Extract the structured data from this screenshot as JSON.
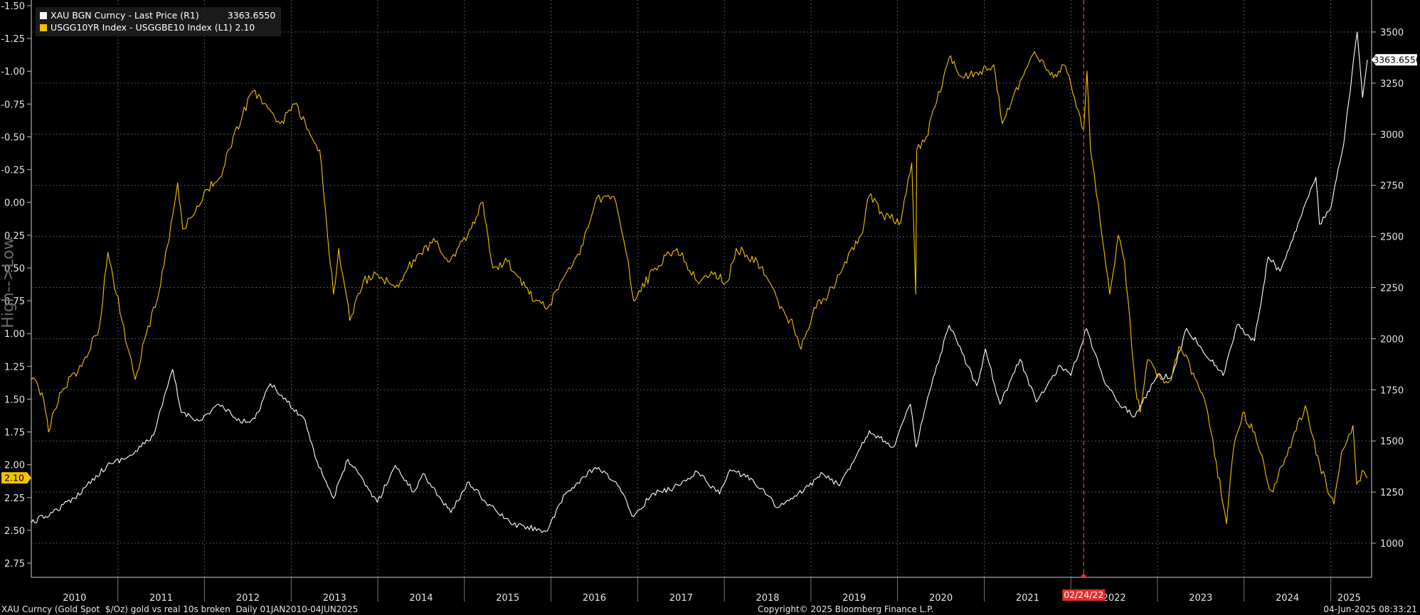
{
  "legend": {
    "items": [
      {
        "label": "XAU BGN Curncy - Last Price (R1)",
        "value": "3363.6550",
        "color": "#ffffff"
      },
      {
        "label": "USGG10YR Index - USGGBE10 Index (L1)",
        "value": "2.10",
        "color": "#f2c200"
      }
    ]
  },
  "axis_label_left": "High-->Low",
  "event_marker": {
    "label": "02/24/22",
    "date": "2022-02-24",
    "color": "#e03030"
  },
  "last_value_tags": {
    "right": "3363.6550",
    "left": "2.10"
  },
  "footer": {
    "left": "XAU Curncy (Gold Spot  $/Oz) gold vs real 10s broken  Daily 01JAN2010-04JUN2025",
    "center": "Copyright© 2025 Bloomberg Finance L.P.",
    "right": "04-Jun-2025 08:33:21"
  },
  "chart_data": {
    "type": "line",
    "x_range": [
      "2010-01-01",
      "2025-06-04"
    ],
    "x_tick_labels": [
      "2010",
      "2011",
      "2012",
      "2013",
      "2014",
      "2015",
      "2016",
      "2017",
      "2018",
      "2019",
      "2020",
      "2021",
      "2022",
      "2023",
      "2024",
      "2025"
    ],
    "left_axis": {
      "ticks": [
        "-1.50",
        "-1.25",
        "-1.00",
        "-0.75",
        "-0.50",
        "-0.25",
        "0.00",
        "0.25",
        "0.50",
        "0.75",
        "1.00",
        "1.25",
        "1.50",
        "1.75",
        "2.00",
        "2.25",
        "2.50",
        "2.75"
      ],
      "range": [
        -1.5,
        2.75
      ],
      "inverted": true
    },
    "right_axis": {
      "ticks": [
        "1000",
        "1250",
        "1500",
        "1750",
        "2000",
        "2250",
        "2500",
        "2750",
        "3000",
        "3250",
        "3500"
      ],
      "range": [
        1000,
        3500
      ]
    },
    "grid": true,
    "series": [
      {
        "name": "XAU BGN Curncy - Last Price (R1)",
        "axis": "right",
        "color": "#ffffff",
        "points": [
          [
            "2010-01-01",
            1100
          ],
          [
            "2010-04-01",
            1150
          ],
          [
            "2010-07-01",
            1220
          ],
          [
            "2010-10-01",
            1330
          ],
          [
            "2010-12-01",
            1390
          ],
          [
            "2011-03-01",
            1430
          ],
          [
            "2011-06-01",
            1530
          ],
          [
            "2011-08-20",
            1850
          ],
          [
            "2011-09-25",
            1640
          ],
          [
            "2011-12-15",
            1600
          ],
          [
            "2012-03-01",
            1680
          ],
          [
            "2012-06-01",
            1590
          ],
          [
            "2012-08-01",
            1610
          ],
          [
            "2012-10-05",
            1780
          ],
          [
            "2012-12-15",
            1690
          ],
          [
            "2013-03-01",
            1600
          ],
          [
            "2013-04-20",
            1400
          ],
          [
            "2013-06-28",
            1220
          ],
          [
            "2013-08-28",
            1410
          ],
          [
            "2013-12-30",
            1200
          ],
          [
            "2014-03-15",
            1380
          ],
          [
            "2014-06-01",
            1250
          ],
          [
            "2014-07-10",
            1340
          ],
          [
            "2014-11-05",
            1150
          ],
          [
            "2015-01-20",
            1300
          ],
          [
            "2015-04-01",
            1200
          ],
          [
            "2015-07-25",
            1090
          ],
          [
            "2015-12-17",
            1060
          ],
          [
            "2016-03-01",
            1240
          ],
          [
            "2016-07-06",
            1370
          ],
          [
            "2016-10-01",
            1300
          ],
          [
            "2016-12-15",
            1130
          ],
          [
            "2017-03-01",
            1240
          ],
          [
            "2017-06-01",
            1270
          ],
          [
            "2017-09-08",
            1350
          ],
          [
            "2017-12-12",
            1240
          ],
          [
            "2018-01-25",
            1360
          ],
          [
            "2018-05-01",
            1310
          ],
          [
            "2018-08-16",
            1175
          ],
          [
            "2018-11-01",
            1230
          ],
          [
            "2019-02-20",
            1340
          ],
          [
            "2019-05-01",
            1280
          ],
          [
            "2019-09-04",
            1550
          ],
          [
            "2019-12-15",
            1470
          ],
          [
            "2020-02-24",
            1680
          ],
          [
            "2020-03-19",
            1470
          ],
          [
            "2020-05-15",
            1740
          ],
          [
            "2020-08-06",
            2065
          ],
          [
            "2020-11-30",
            1770
          ],
          [
            "2021-01-06",
            1950
          ],
          [
            "2021-03-08",
            1680
          ],
          [
            "2021-06-01",
            1900
          ],
          [
            "2021-08-09",
            1690
          ],
          [
            "2021-11-16",
            1870
          ],
          [
            "2022-01-01",
            1820
          ],
          [
            "2022-03-08",
            2050
          ],
          [
            "2022-05-16",
            1810
          ],
          [
            "2022-07-20",
            1690
          ],
          [
            "2022-09-28",
            1620
          ],
          [
            "2022-12-30",
            1820
          ],
          [
            "2023-02-28",
            1810
          ],
          [
            "2023-05-04",
            2050
          ],
          [
            "2023-10-05",
            1820
          ],
          [
            "2023-12-04",
            2070
          ],
          [
            "2024-02-14",
            1990
          ],
          [
            "2024-04-12",
            2400
          ],
          [
            "2024-06-01",
            2330
          ],
          [
            "2024-07-17",
            2470
          ],
          [
            "2024-10-30",
            2790
          ],
          [
            "2024-11-14",
            2560
          ],
          [
            "2025-01-01",
            2640
          ],
          [
            "2025-02-24",
            2950
          ],
          [
            "2025-04-22",
            3500
          ],
          [
            "2025-05-15",
            3180
          ],
          [
            "2025-06-04",
            3364
          ]
        ]
      },
      {
        "name": "USGG10YR Index - USGGBE10 Index (L1)",
        "axis": "left",
        "color": "#f2c200",
        "points": [
          [
            "2010-01-01",
            1.35
          ],
          [
            "2010-02-15",
            1.45
          ],
          [
            "2010-03-15",
            1.75
          ],
          [
            "2010-05-01",
            1.45
          ],
          [
            "2010-08-01",
            1.25
          ],
          [
            "2010-10-15",
            0.95
          ],
          [
            "2010-11-20",
            0.38
          ],
          [
            "2010-12-10",
            0.55
          ],
          [
            "2011-02-10",
            1.1
          ],
          [
            "2011-03-15",
            1.35
          ],
          [
            "2011-05-01",
            1.0
          ],
          [
            "2011-06-15",
            0.75
          ],
          [
            "2011-08-20",
            0.1
          ],
          [
            "2011-09-10",
            -0.15
          ],
          [
            "2011-10-01",
            0.2
          ],
          [
            "2011-11-15",
            0.1
          ],
          [
            "2012-01-15",
            -0.1
          ],
          [
            "2012-03-20",
            -0.25
          ],
          [
            "2012-05-01",
            -0.5
          ],
          [
            "2012-07-25",
            -0.85
          ],
          [
            "2012-09-01",
            -0.75
          ],
          [
            "2012-11-15",
            -0.6
          ],
          [
            "2013-01-15",
            -0.75
          ],
          [
            "2013-03-15",
            -0.55
          ],
          [
            "2013-05-01",
            -0.4
          ],
          [
            "2013-06-01",
            0.2
          ],
          [
            "2013-06-28",
            0.7
          ],
          [
            "2013-07-20",
            0.35
          ],
          [
            "2013-09-05",
            0.9
          ],
          [
            "2013-11-01",
            0.6
          ],
          [
            "2014-01-01",
            0.55
          ],
          [
            "2014-03-15",
            0.65
          ],
          [
            "2014-06-15",
            0.4
          ],
          [
            "2014-09-01",
            0.3
          ],
          [
            "2014-11-01",
            0.45
          ],
          [
            "2015-01-30",
            0.2
          ],
          [
            "2015-03-20",
            0.0
          ],
          [
            "2015-05-01",
            0.5
          ],
          [
            "2015-07-01",
            0.45
          ],
          [
            "2015-10-01",
            0.7
          ],
          [
            "2015-12-20",
            0.8
          ],
          [
            "2016-03-01",
            0.55
          ],
          [
            "2016-05-01",
            0.4
          ],
          [
            "2016-07-05",
            0.0
          ],
          [
            "2016-08-15",
            -0.05
          ],
          [
            "2016-10-01",
            0.0
          ],
          [
            "2016-11-15",
            0.4
          ],
          [
            "2016-12-15",
            0.75
          ],
          [
            "2017-03-15",
            0.5
          ],
          [
            "2017-06-15",
            0.35
          ],
          [
            "2017-09-08",
            0.6
          ],
          [
            "2017-11-15",
            0.55
          ],
          [
            "2018-01-15",
            0.6
          ],
          [
            "2018-02-20",
            0.35
          ],
          [
            "2018-05-20",
            0.45
          ],
          [
            "2018-08-15",
            0.75
          ],
          [
            "2018-10-20",
            0.95
          ],
          [
            "2018-11-20",
            1.12
          ],
          [
            "2019-01-15",
            0.8
          ],
          [
            "2019-03-15",
            0.7
          ],
          [
            "2019-05-01",
            0.55
          ],
          [
            "2019-08-01",
            0.25
          ],
          [
            "2019-09-04",
            -0.05
          ],
          [
            "2019-11-01",
            0.1
          ],
          [
            "2020-01-15",
            0.15
          ],
          [
            "2020-03-01",
            -0.3
          ],
          [
            "2020-03-18",
            0.7
          ],
          [
            "2020-03-22",
            -0.4
          ],
          [
            "2020-05-01",
            -0.5
          ],
          [
            "2020-08-05",
            -1.1
          ],
          [
            "2020-10-01",
            -0.95
          ],
          [
            "2020-12-15",
            -1.0
          ],
          [
            "2021-02-10",
            -1.05
          ],
          [
            "2021-03-18",
            -0.6
          ],
          [
            "2021-05-01",
            -0.8
          ],
          [
            "2021-08-01",
            -1.15
          ],
          [
            "2021-10-20",
            -0.95
          ],
          [
            "2021-12-01",
            -1.05
          ],
          [
            "2022-01-01",
            -0.9
          ],
          [
            "2022-02-24",
            -0.55
          ],
          [
            "2022-03-10",
            -1.0
          ],
          [
            "2022-03-25",
            -0.4
          ],
          [
            "2022-05-05",
            0.15
          ],
          [
            "2022-06-14",
            0.7
          ],
          [
            "2022-07-20",
            0.25
          ],
          [
            "2022-08-15",
            0.45
          ],
          [
            "2022-09-30",
            1.4
          ],
          [
            "2022-10-20",
            1.6
          ],
          [
            "2022-11-20",
            1.2
          ],
          [
            "2023-01-15",
            1.35
          ],
          [
            "2023-03-01",
            1.35
          ],
          [
            "2023-04-01",
            1.1
          ],
          [
            "2023-06-01",
            1.3
          ],
          [
            "2023-08-01",
            1.6
          ],
          [
            "2023-10-19",
            2.45
          ],
          [
            "2023-11-20",
            1.85
          ],
          [
            "2023-12-27",
            1.6
          ],
          [
            "2024-02-15",
            1.75
          ],
          [
            "2024-04-25",
            2.2
          ],
          [
            "2024-06-15",
            2.0
          ],
          [
            "2024-09-15",
            1.55
          ],
          [
            "2024-11-15",
            2.0
          ],
          [
            "2025-01-14",
            2.3
          ],
          [
            "2025-02-15",
            1.9
          ],
          [
            "2025-04-04",
            1.7
          ],
          [
            "2025-04-20",
            2.15
          ],
          [
            "2025-05-20",
            2.05
          ],
          [
            "2025-06-04",
            2.1
          ]
        ]
      }
    ]
  }
}
